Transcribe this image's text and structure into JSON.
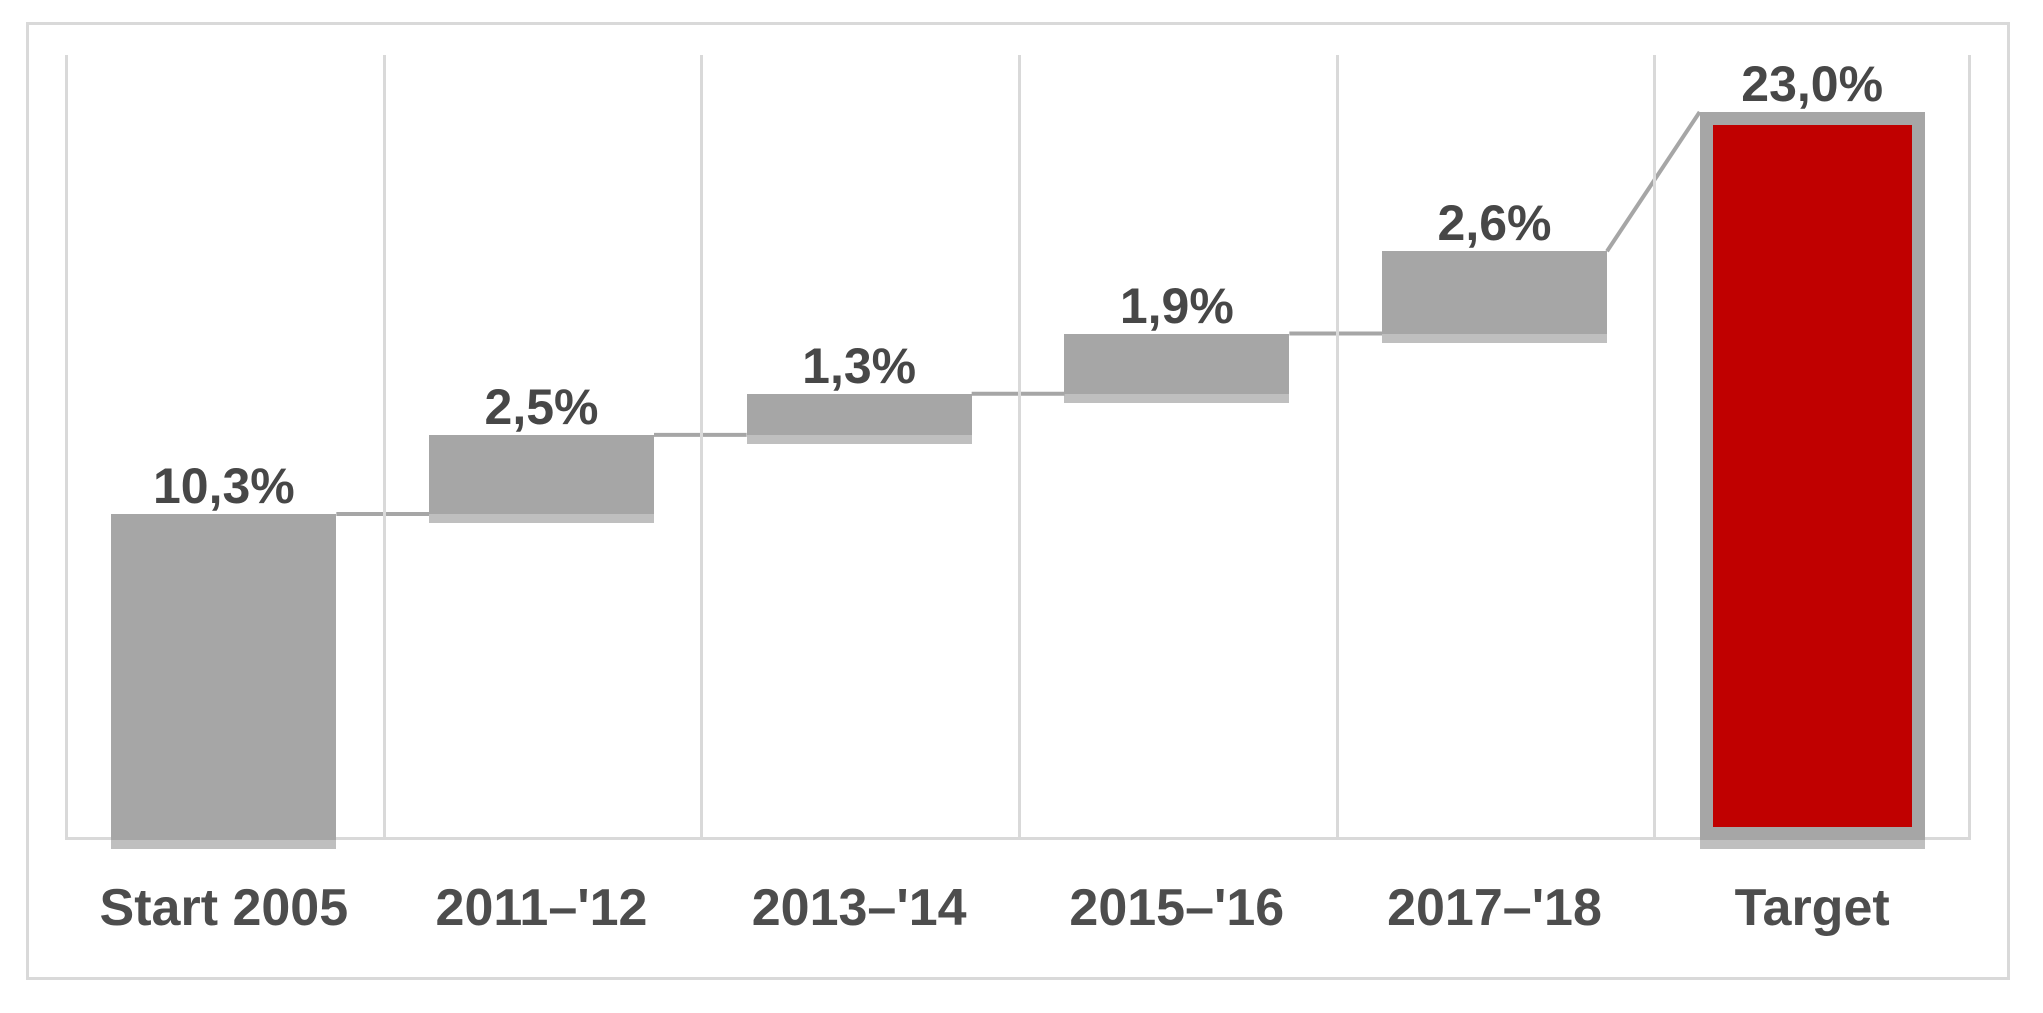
{
  "chart_data": {
    "type": "bar",
    "subtype": "waterfall",
    "title": "",
    "categories": [
      "Start 2005",
      "2011–'12",
      "2013–'14",
      "2015–'16",
      "2017–'18",
      "Target"
    ],
    "values": [
      10.3,
      2.5,
      1.3,
      1.9,
      2.6,
      23.0
    ],
    "value_labels": [
      "10,3%",
      "2,5%",
      "1,3%",
      "1,9%",
      "2,6%",
      "23,0%"
    ],
    "bar_types": [
      "base",
      "increment",
      "increment",
      "increment",
      "increment",
      "total"
    ],
    "cumulative_levels": [
      10.3,
      12.8,
      14.1,
      16.0,
      18.6,
      23.0
    ],
    "unit": "%",
    "decimal_separator": ",",
    "xlabel": "",
    "ylabel": "",
    "ylim": [
      0,
      24.8
    ],
    "legend": "none",
    "grid": "vertical category separators only",
    "connectors": "step connectors between consecutive bars; diagonal connector rises from 2017–'18 top (18,6%) to Target top (23,0%)",
    "colors": {
      "increment_bar": "#A6A6A6",
      "total_bar_fill": "#C00000",
      "total_bar_border": "#A6A6A6",
      "connector": "#A6A6A6",
      "gridline": "#D9D9D9",
      "frame_border": "#D9D9D9",
      "value_label_text": "#474747",
      "axis_label_text": "#4D4D4D",
      "background": "#FFFFFF"
    }
  }
}
